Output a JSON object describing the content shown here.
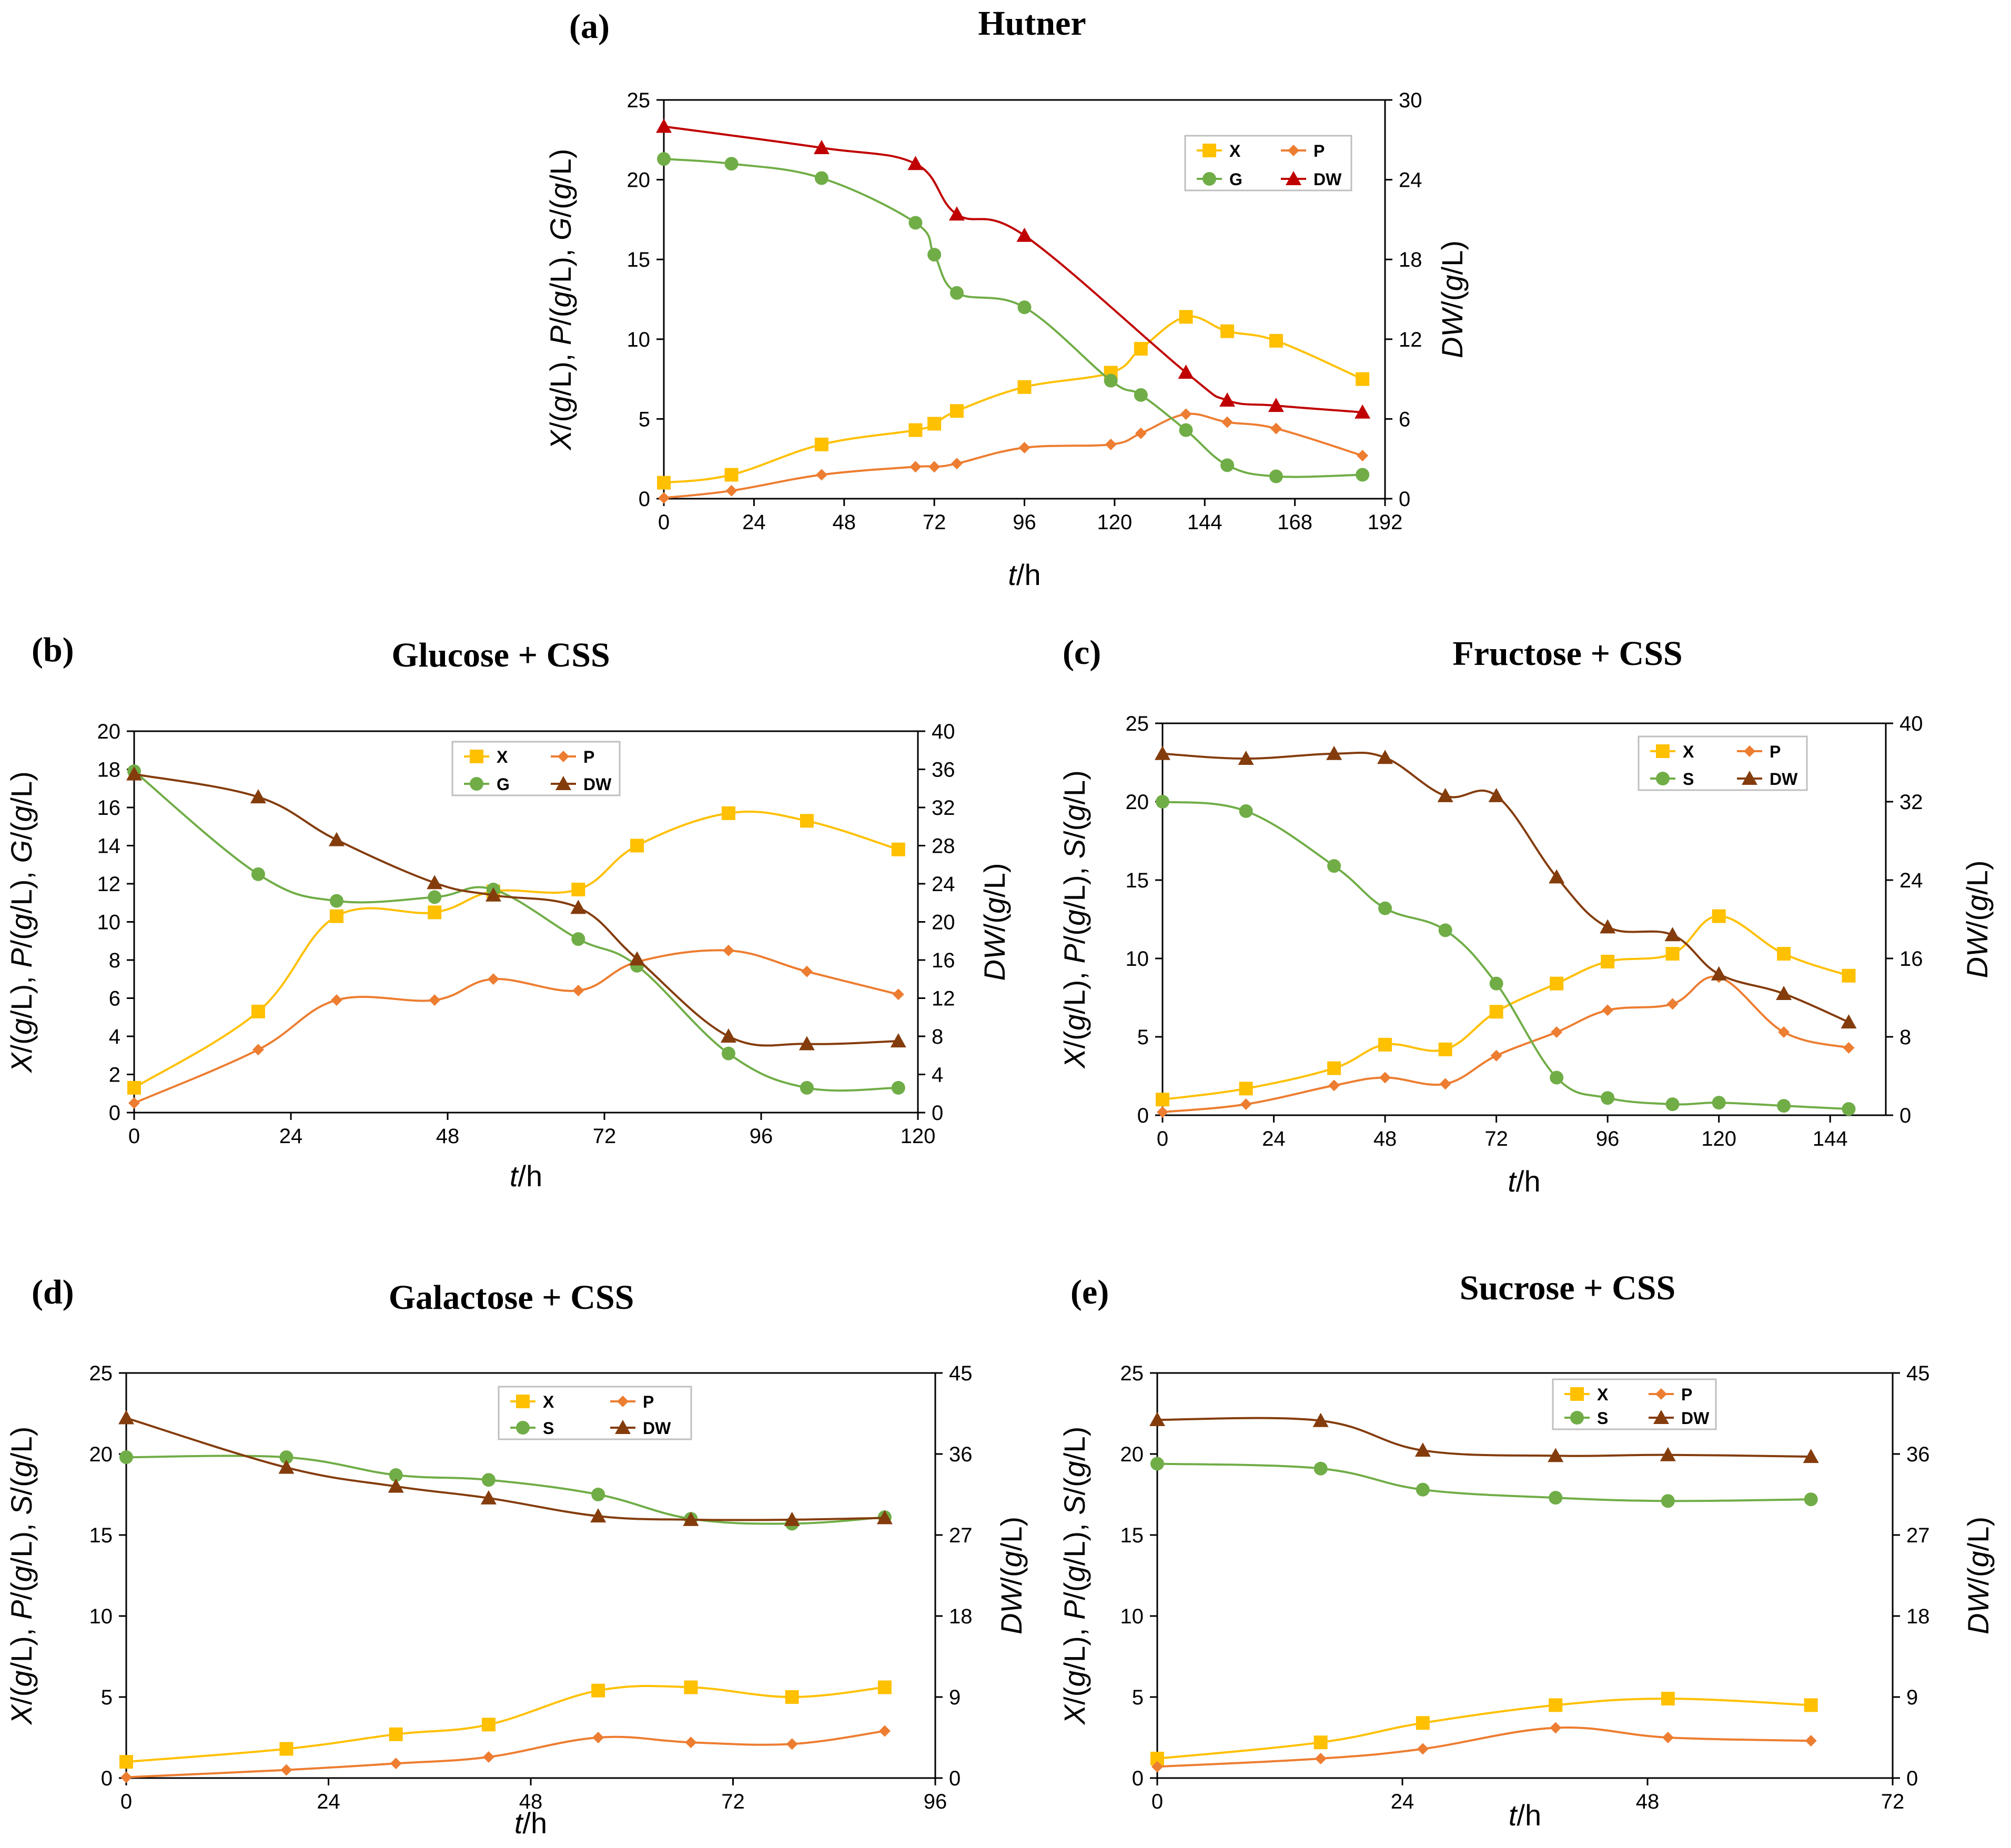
{
  "figure": {
    "colors": {
      "X": "#FFC000",
      "P": "#ED7D31",
      "G": "#70AD47",
      "DW": "#843C0C",
      "DW_a": "#C00000",
      "axis": "#000000"
    }
  },
  "chart_data": [
    {
      "id": "a",
      "type": "line",
      "panel_label": "(a)",
      "title": "Hutner",
      "xlabel": "t/h",
      "ylabel": "X/(g/L), P/(g/L), G/(g/L)",
      "y2label": "DW/(g/L)",
      "xlim": [
        0,
        192
      ],
      "xticks": [
        0,
        24,
        48,
        72,
        96,
        120,
        144,
        168,
        192
      ],
      "ylim": [
        0,
        25
      ],
      "yticks": [
        0,
        5,
        10,
        15,
        20,
        25
      ],
      "y2lim": [
        0,
        30
      ],
      "y2ticks": [
        0,
        6,
        12,
        18,
        24,
        30
      ],
      "legend_position": "top-right",
      "series": [
        {
          "name": "X",
          "axis": "left",
          "marker": "square",
          "color": "#FFC000",
          "x": [
            0,
            18,
            42,
            67,
            72,
            78,
            96,
            119,
            127,
            139,
            150,
            163,
            186
          ],
          "y": [
            1.0,
            1.5,
            3.4,
            4.3,
            4.7,
            5.5,
            7.0,
            7.9,
            9.4,
            11.4,
            10.5,
            9.9,
            7.5
          ]
        },
        {
          "name": "P",
          "axis": "left",
          "marker": "diamond",
          "color": "#ED7D31",
          "x": [
            0,
            18,
            42,
            67,
            72,
            78,
            96,
            119,
            127,
            139,
            150,
            163,
            186
          ],
          "y": [
            0.05,
            0.5,
            1.5,
            2.0,
            2.0,
            2.2,
            3.2,
            3.4,
            4.1,
            5.3,
            4.8,
            4.4,
            2.7
          ]
        },
        {
          "name": "G",
          "axis": "left",
          "marker": "circle",
          "color": "#70AD47",
          "x": [
            0,
            18,
            42,
            67,
            72,
            78,
            96,
            119,
            127,
            139,
            150,
            163,
            186
          ],
          "y": [
            21.3,
            21.0,
            20.1,
            17.3,
            15.3,
            12.9,
            12.0,
            7.4,
            6.5,
            4.3,
            2.1,
            1.4,
            1.5
          ]
        },
        {
          "name": "DW",
          "axis": "right",
          "marker": "triangle",
          "color": "#C00000",
          "x": [
            0,
            42,
            67,
            78,
            96,
            139,
            150,
            163,
            186
          ],
          "y": [
            28.0,
            26.4,
            25.2,
            21.4,
            19.8,
            9.5,
            7.4,
            7.0,
            6.5
          ]
        }
      ]
    },
    {
      "id": "b",
      "type": "line",
      "panel_label": "(b)",
      "title": "Glucose  + CSS",
      "xlabel": "t/h",
      "ylabel": "X/(g/L), P/(g/L), G/(g/L)",
      "y2label": "DW/(g/L)",
      "xlim": [
        0,
        120
      ],
      "xticks": [
        0,
        24,
        48,
        72,
        96,
        120
      ],
      "ylim": [
        0,
        20
      ],
      "yticks": [
        0,
        2,
        4,
        6,
        8,
        10,
        12,
        14,
        16,
        18,
        20
      ],
      "y2lim": [
        0,
        40
      ],
      "y2ticks": [
        0,
        4,
        8,
        12,
        16,
        20,
        24,
        28,
        32,
        36,
        40
      ],
      "legend_position": "top-center",
      "series": [
        {
          "name": "X",
          "axis": "left",
          "marker": "square",
          "color": "#FFC000",
          "x": [
            0,
            19,
            31,
            46,
            55,
            68,
            77,
            91,
            103,
            117
          ],
          "y": [
            1.3,
            5.3,
            10.3,
            10.5,
            11.6,
            11.7,
            14.0,
            15.7,
            15.3,
            13.8
          ]
        },
        {
          "name": "P",
          "axis": "left",
          "marker": "diamond",
          "color": "#ED7D31",
          "x": [
            0,
            19,
            31,
            46,
            55,
            68,
            77,
            91,
            103,
            117
          ],
          "y": [
            0.5,
            3.3,
            5.9,
            5.9,
            7.0,
            6.4,
            7.9,
            8.5,
            7.4,
            6.2
          ]
        },
        {
          "name": "G",
          "axis": "left",
          "marker": "circle",
          "color": "#70AD47",
          "x": [
            0,
            19,
            31,
            46,
            55,
            68,
            77,
            91,
            103,
            117
          ],
          "y": [
            17.9,
            12.5,
            11.1,
            11.3,
            11.7,
            9.1,
            7.7,
            3.1,
            1.3,
            1.3
          ]
        },
        {
          "name": "DW",
          "axis": "right",
          "marker": "triangle",
          "color": "#843C0C",
          "x": [
            0,
            19,
            31,
            46,
            55,
            68,
            77,
            91,
            103,
            117
          ],
          "y": [
            35.5,
            33.1,
            28.6,
            24.1,
            22.8,
            21.5,
            16.1,
            8.0,
            7.2,
            7.5
          ]
        }
      ]
    },
    {
      "id": "c",
      "type": "line",
      "panel_label": "(c)",
      "title": "Fructose + CSS",
      "xlabel": "t/h",
      "ylabel": "X/(g/L), P/(g/L), S/(g/L)",
      "y2label": "DW/(g/L)",
      "xlim": [
        0,
        156
      ],
      "xticks": [
        0,
        24,
        48,
        72,
        96,
        120,
        144
      ],
      "ylim": [
        0,
        25
      ],
      "yticks": [
        0,
        5,
        10,
        15,
        20,
        25
      ],
      "y2lim": [
        0,
        40
      ],
      "y2ticks": [
        0,
        8,
        16,
        24,
        32,
        40
      ],
      "legend_position": "top-right",
      "series": [
        {
          "name": "X",
          "axis": "left",
          "marker": "square",
          "color": "#FFC000",
          "x": [
            0,
            18,
            37,
            48,
            61,
            72,
            85,
            96,
            110,
            120,
            134,
            148
          ],
          "y": [
            1.0,
            1.7,
            3.0,
            4.5,
            4.2,
            6.6,
            8.4,
            9.8,
            10.3,
            12.7,
            10.3,
            8.9
          ]
        },
        {
          "name": "P",
          "axis": "left",
          "marker": "diamond",
          "color": "#ED7D31",
          "x": [
            0,
            18,
            37,
            48,
            61,
            72,
            85,
            96,
            110,
            120,
            134,
            148
          ],
          "y": [
            0.2,
            0.7,
            1.9,
            2.4,
            2.0,
            3.8,
            5.3,
            6.7,
            7.1,
            8.8,
            5.3,
            4.3
          ]
        },
        {
          "name": "S",
          "axis": "left",
          "marker": "circle",
          "color": "#70AD47",
          "x": [
            0,
            18,
            37,
            48,
            61,
            72,
            85,
            96,
            110,
            120,
            134,
            148
          ],
          "y": [
            20.0,
            19.4,
            15.9,
            13.2,
            11.8,
            8.4,
            2.4,
            1.1,
            0.7,
            0.8,
            0.6,
            0.4
          ]
        },
        {
          "name": "DW",
          "axis": "right",
          "marker": "triangle",
          "color": "#843C0C",
          "x": [
            0,
            18,
            37,
            48,
            61,
            72,
            85,
            96,
            110,
            120,
            134,
            148
          ],
          "y": [
            36.9,
            36.4,
            36.9,
            36.5,
            32.6,
            32.6,
            24.3,
            19.2,
            18.4,
            14.4,
            12.4,
            9.5
          ]
        }
      ]
    },
    {
      "id": "d",
      "type": "line",
      "panel_label": "(d)",
      "title": "Galactose + CSS",
      "xlabel": "t/h",
      "ylabel": "X/(g/L), P/(g/L), S/(g/L)",
      "y2label": "DW/(g/L)",
      "xlim": [
        0,
        96
      ],
      "xticks": [
        0,
        24,
        48,
        72,
        96
      ],
      "ylim": [
        0,
        25
      ],
      "yticks": [
        0,
        5,
        10,
        15,
        20,
        25
      ],
      "y2lim": [
        0,
        45
      ],
      "y2ticks": [
        0,
        9,
        18,
        27,
        36,
        45
      ],
      "legend_position": "top-center",
      "series": [
        {
          "name": "X",
          "axis": "left",
          "marker": "square",
          "color": "#FFC000",
          "x": [
            0,
            19,
            32,
            43,
            56,
            67,
            79,
            90
          ],
          "y": [
            1.0,
            1.8,
            2.7,
            3.3,
            5.4,
            5.6,
            5.0,
            5.6
          ]
        },
        {
          "name": "P",
          "axis": "left",
          "marker": "diamond",
          "color": "#ED7D31",
          "x": [
            0,
            19,
            32,
            43,
            56,
            67,
            79,
            90
          ],
          "y": [
            0.05,
            0.5,
            0.9,
            1.3,
            2.5,
            2.2,
            2.1,
            2.9
          ]
        },
        {
          "name": "S",
          "axis": "left",
          "marker": "circle",
          "color": "#70AD47",
          "x": [
            0,
            19,
            32,
            43,
            56,
            67,
            79,
            90
          ],
          "y": [
            19.8,
            19.8,
            18.7,
            18.4,
            17.5,
            16.0,
            15.7,
            16.1
          ]
        },
        {
          "name": "DW",
          "axis": "right",
          "marker": "triangle",
          "color": "#843C0C",
          "x": [
            0,
            19,
            32,
            43,
            56,
            67,
            79,
            90
          ],
          "y": [
            40.0,
            34.5,
            32.4,
            31.1,
            29.1,
            28.7,
            28.7,
            28.9
          ]
        }
      ]
    },
    {
      "id": "e",
      "type": "line",
      "panel_label": "(e)",
      "title": "Sucrose + CSS",
      "xlabel": "t/h",
      "ylabel": "X/(g/L), P/(g/L), S/(g/L)",
      "y2label": "DW/(g/L)",
      "xlim": [
        0,
        72
      ],
      "xticks": [
        0,
        24,
        48,
        72
      ],
      "ylim": [
        0,
        25
      ],
      "yticks": [
        0,
        5,
        10,
        15,
        20,
        25
      ],
      "y2lim": [
        0,
        45
      ],
      "y2ticks": [
        0,
        9,
        18,
        27,
        36,
        45
      ],
      "legend_position": "top-center",
      "series": [
        {
          "name": "X",
          "axis": "left",
          "marker": "square",
          "color": "#FFC000",
          "x": [
            0,
            16,
            26,
            39,
            50,
            64
          ],
          "y": [
            1.2,
            2.2,
            3.4,
            4.5,
            4.9,
            4.5
          ]
        },
        {
          "name": "P",
          "axis": "left",
          "marker": "diamond",
          "color": "#ED7D31",
          "x": [
            0,
            16,
            26,
            39,
            50,
            64
          ],
          "y": [
            0.7,
            1.2,
            1.8,
            3.1,
            2.5,
            2.3
          ]
        },
        {
          "name": "S",
          "axis": "left",
          "marker": "circle",
          "color": "#70AD47",
          "x": [
            0,
            16,
            26,
            39,
            50,
            64
          ],
          "y": [
            19.4,
            19.1,
            17.8,
            17.3,
            17.1,
            17.2
          ]
        },
        {
          "name": "DW",
          "axis": "right",
          "marker": "triangle",
          "color": "#843C0C",
          "x": [
            0,
            16,
            26,
            39,
            50,
            64
          ],
          "y": [
            39.8,
            39.7,
            36.4,
            35.8,
            35.9,
            35.7
          ]
        }
      ]
    }
  ]
}
